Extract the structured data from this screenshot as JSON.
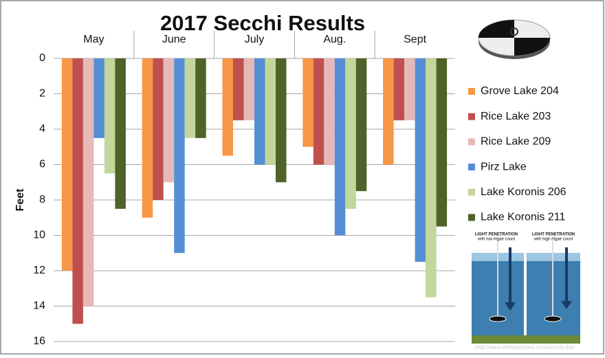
{
  "chart_data": {
    "type": "bar",
    "title": "2017 Secchi Results",
    "y_label": "Feet",
    "categories": [
      "May",
      "June",
      "July",
      "Aug.",
      "Sept"
    ],
    "series": [
      {
        "name": "Grove Lake 204",
        "color": "#f79646",
        "values": [
          12,
          9,
          5.5,
          5,
          6
        ]
      },
      {
        "name": "Rice Lake 203",
        "color": "#c0504d",
        "values": [
          15,
          8,
          3.5,
          6,
          3.5
        ]
      },
      {
        "name": "Rice Lake 209",
        "color": "#e6b9b8",
        "values": [
          14,
          7,
          3.5,
          6,
          3.5
        ]
      },
      {
        "name": "Pirz Lake",
        "color": "#558ed5",
        "values": [
          4.5,
          11,
          6,
          10,
          11.5
        ]
      },
      {
        "name": "Lake Koronis 206",
        "color": "#c3d69b",
        "values": [
          6.5,
          4.5,
          6,
          8.5,
          13.5
        ]
      },
      {
        "name": "Lake Koronis 211",
        "color": "#4f6228",
        "values": [
          8.5,
          4.5,
          7,
          7.5,
          9.5
        ]
      }
    ],
    "ylim": [
      0,
      16
    ],
    "yticks": [
      0,
      2,
      4,
      6,
      8,
      10,
      12,
      14,
      16
    ],
    "y_inverted": true,
    "x_axis_position": "top",
    "grid": true,
    "legend": "right",
    "illustration_texts": [
      "LIGHT PENETRATION",
      "with low Algae count",
      "LIGHT PENETRATION",
      "with high Algae count",
      "http://www.writeopinions.com/secchi-disc"
    ]
  }
}
